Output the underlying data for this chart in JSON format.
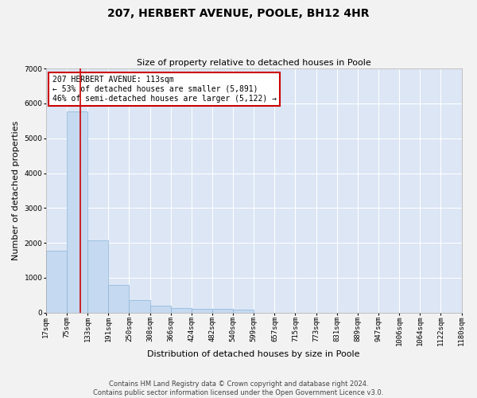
{
  "title": "207, HERBERT AVENUE, POOLE, BH12 4HR",
  "subtitle": "Size of property relative to detached houses in Poole",
  "xlabel": "Distribution of detached houses by size in Poole",
  "ylabel": "Number of detached properties",
  "bar_color": "#c5d9f0",
  "bar_edge_color": "#8ab4d8",
  "background_color": "#dce6f5",
  "grid_color": "#ffffff",
  "fig_background": "#f2f2f2",
  "property_size": 113,
  "property_line_color": "#cc0000",
  "annotation_line1": "207 HERBERT AVENUE: 113sqm",
  "annotation_line2": "← 53% of detached houses are smaller (5,891)",
  "annotation_line3": "46% of semi-detached houses are larger (5,122) →",
  "annotation_box_color": "#cc0000",
  "bin_edges": [
    17,
    75,
    133,
    191,
    250,
    308,
    366,
    424,
    482,
    540,
    599,
    657,
    715,
    773,
    831,
    889,
    947,
    1006,
    1064,
    1122,
    1180
  ],
  "bin_counts": [
    1780,
    5780,
    2060,
    800,
    350,
    200,
    130,
    110,
    100,
    80,
    0,
    0,
    0,
    0,
    0,
    0,
    0,
    0,
    0,
    0
  ],
  "ylim": [
    0,
    7000
  ],
  "yticks": [
    0,
    1000,
    2000,
    3000,
    4000,
    5000,
    6000,
    7000
  ],
  "footer_text": "Contains HM Land Registry data © Crown copyright and database right 2024.\nContains public sector information licensed under the Open Government Licence v3.0.",
  "tick_label_fontsize": 6.5,
  "axis_label_fontsize": 8,
  "title_fontsize": 10,
  "subtitle_fontsize": 8,
  "footer_fontsize": 6,
  "annotation_fontsize": 7
}
